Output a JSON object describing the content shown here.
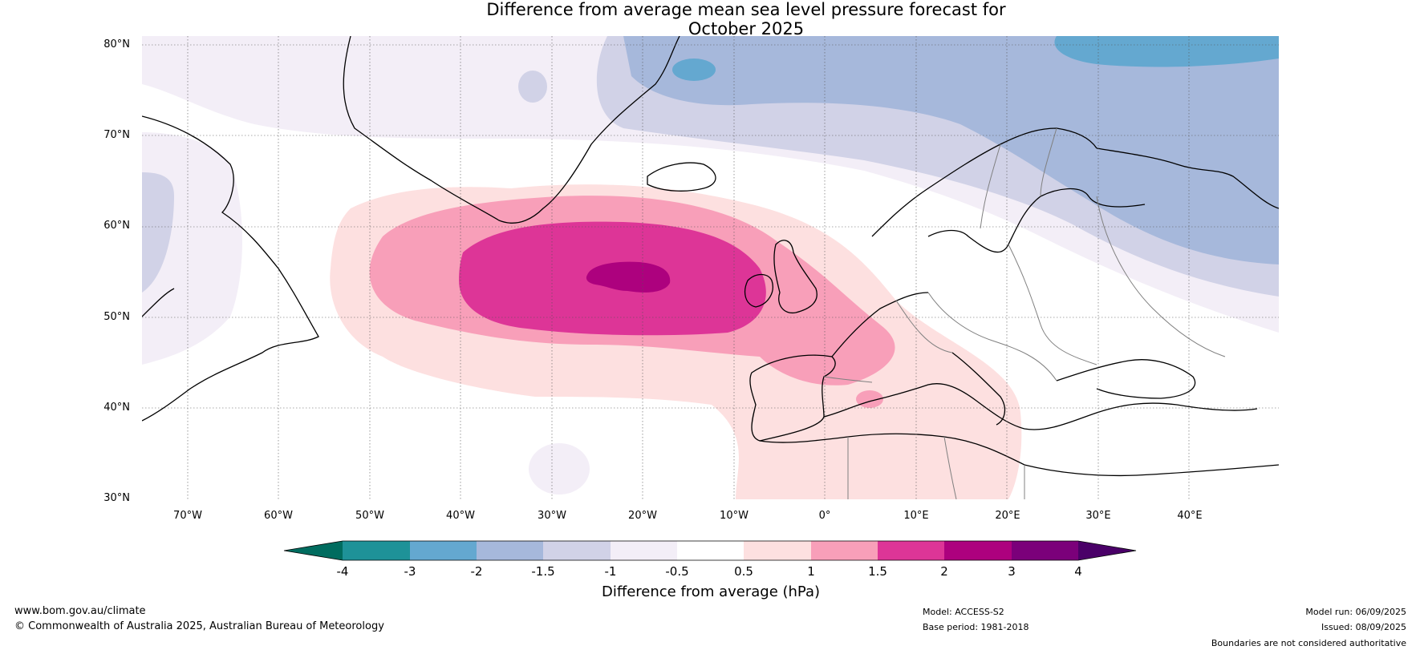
{
  "title": {
    "line1": "Difference from average mean sea level pressure forecast for",
    "line2": "October 2025"
  },
  "map": {
    "lat_labels": [
      "80°N",
      "70°N",
      "60°N",
      "50°N",
      "40°N",
      "30°N"
    ],
    "lon_labels": [
      "70°W",
      "60°W",
      "50°W",
      "40°W",
      "30°W",
      "20°W",
      "10°W",
      "0°",
      "10°E",
      "20°E",
      "30°E",
      "40°E"
    ],
    "extent": {
      "lon_min": -75,
      "lon_max": 50,
      "lat_min": 30,
      "lat_max": 81
    }
  },
  "colorbar": {
    "label": "Difference from average (hPa)",
    "ticks": [
      "-4",
      "-3",
      "-2",
      "-1.5",
      "-1",
      "-0.5",
      "0.5",
      "1",
      "1.5",
      "2",
      "3",
      "4"
    ],
    "colors": {
      "lt_-4": "#006c5f",
      "-4_-3": "#1e9298",
      "-3_-2": "#64a8d0",
      "-2_-1.5": "#a6b8db",
      "-1.5_-1": "#d1d2e7",
      "-1_-0.5": "#f3eef7",
      "-0.5_0.5": "#ffffff",
      "0.5_1": "#fde0e0",
      "1_1.5": "#f89fb9",
      "1.5_2": "#dd3597",
      "2_3": "#ad017e",
      "3_4": "#7b007a",
      "gt_4": "#4a0068"
    }
  },
  "footer": {
    "website": "www.bom.gov.au/climate",
    "copyright": "© Commonwealth of Australia 2025, Australian Bureau of Meteorology",
    "model": "Model: ACCESS-S2",
    "base_period": "Base period: 1981-2018",
    "model_run": "Model run: 06/09/2025",
    "issued": "Issued: 08/09/2025",
    "disclaimer": "Boundaries are not considered authoritative"
  }
}
